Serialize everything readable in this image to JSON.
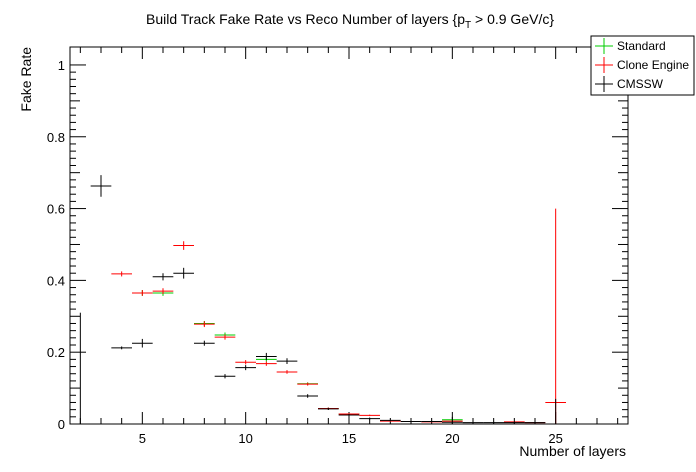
{
  "chart_data": {
    "type": "scatter",
    "title": "Build Track Fake Rate vs Reco Number of layers {p",
    "title_sub": "T",
    "title_suffix": " > 0.9 GeV/c}",
    "xlabel": "Number of layers",
    "ylabel": "Fake Rate",
    "xlim": [
      1.5,
      28.5
    ],
    "ylim": [
      0,
      1.05
    ],
    "xticks": [
      5,
      10,
      15,
      20,
      25
    ],
    "xtick_labels": [
      "5",
      "10",
      "15",
      "20",
      "25"
    ],
    "yticks": [
      0,
      0.2,
      0.4,
      0.6,
      0.8,
      1
    ],
    "ytick_labels": [
      "0",
      "0.2",
      "0.4",
      "0.6",
      "0.8",
      "1"
    ],
    "legend_position": "top-right",
    "series": [
      {
        "name": "Standard",
        "color": "#00cc00",
        "points": [
          {
            "x": 5,
            "y": 0.365,
            "err": 0.008
          },
          {
            "x": 6,
            "y": 0.365,
            "err": 0.008
          },
          {
            "x": 8,
            "y": 0.28,
            "err": 0.007
          },
          {
            "x": 9,
            "y": 0.248,
            "err": 0.007
          },
          {
            "x": 11,
            "y": 0.18,
            "err": 0.006
          },
          {
            "x": 13,
            "y": 0.112,
            "err": 0.004
          },
          {
            "x": 14,
            "y": 0.043,
            "err": 0.003
          },
          {
            "x": 15,
            "y": 0.028,
            "err": 0.002
          },
          {
            "x": 20,
            "y": 0.012,
            "err": 0.002
          }
        ]
      },
      {
        "name": "Clone Engine",
        "color": "#ff0000",
        "points": [
          {
            "x": 4,
            "y": 0.418,
            "err": 0.007
          },
          {
            "x": 5,
            "y": 0.365,
            "err": 0.008
          },
          {
            "x": 6,
            "y": 0.37,
            "err": 0.008
          },
          {
            "x": 7,
            "y": 0.497,
            "err": 0.012
          },
          {
            "x": 8,
            "y": 0.278,
            "err": 0.008
          },
          {
            "x": 9,
            "y": 0.242,
            "err": 0.007
          },
          {
            "x": 10,
            "y": 0.172,
            "err": 0.006
          },
          {
            "x": 11,
            "y": 0.168,
            "err": 0.006
          },
          {
            "x": 12,
            "y": 0.145,
            "err": 0.005
          },
          {
            "x": 13,
            "y": 0.111,
            "err": 0.004
          },
          {
            "x": 14,
            "y": 0.043,
            "err": 0.003
          },
          {
            "x": 15,
            "y": 0.028,
            "err": 0.002
          },
          {
            "x": 16,
            "y": 0.024,
            "err": 0.002
          },
          {
            "x": 17,
            "y": 0.008,
            "err": 0.001
          },
          {
            "x": 19,
            "y": 0.006,
            "err": 0.001
          },
          {
            "x": 20,
            "y": 0.008,
            "err": 0.001
          },
          {
            "x": 23,
            "y": 0.006,
            "err": 0.001
          },
          {
            "x": 24,
            "y": 0.004,
            "err": 0.001
          },
          {
            "x": 25,
            "y": 0.06,
            "err_lo": 0.06,
            "err_hi": 0.54
          }
        ]
      },
      {
        "name": "CMSSW",
        "color": "#000000",
        "points": [
          {
            "x": 2,
            "y": 0.0,
            "err_lo": 0.0,
            "err_hi": 0.31
          },
          {
            "x": 3,
            "y": 0.663,
            "err": 0.03
          },
          {
            "x": 4,
            "y": 0.212,
            "err": 0.004
          },
          {
            "x": 5,
            "y": 0.225,
            "err": 0.012
          },
          {
            "x": 6,
            "y": 0.41,
            "err": 0.01
          },
          {
            "x": 7,
            "y": 0.42,
            "err": 0.015
          },
          {
            "x": 8,
            "y": 0.225,
            "err": 0.007
          },
          {
            "x": 9,
            "y": 0.133,
            "err": 0.006
          },
          {
            "x": 10,
            "y": 0.157,
            "err": 0.007
          },
          {
            "x": 11,
            "y": 0.188,
            "err": 0.01
          },
          {
            "x": 12,
            "y": 0.175,
            "err": 0.008
          },
          {
            "x": 13,
            "y": 0.078,
            "err": 0.005
          },
          {
            "x": 14,
            "y": 0.042,
            "err": 0.003
          },
          {
            "x": 15,
            "y": 0.025,
            "err": 0.003
          },
          {
            "x": 16,
            "y": 0.015,
            "err": 0.003
          },
          {
            "x": 17,
            "y": 0.01,
            "err": 0.002
          },
          {
            "x": 18,
            "y": 0.007,
            "err": 0.002
          },
          {
            "x": 19,
            "y": 0.007,
            "err": 0.002
          },
          {
            "x": 20,
            "y": 0.005,
            "err": 0.015
          },
          {
            "x": 21,
            "y": 0.004,
            "err": 0.002
          },
          {
            "x": 22,
            "y": 0.004,
            "err": 0.002
          },
          {
            "x": 23,
            "y": 0.004,
            "err": 0.003
          },
          {
            "x": 24,
            "y": 0.004,
            "err": 0.003
          },
          {
            "x": 25,
            "y": 0.0,
            "err_lo": 0.0,
            "err_hi": 0.07
          }
        ]
      }
    ]
  }
}
